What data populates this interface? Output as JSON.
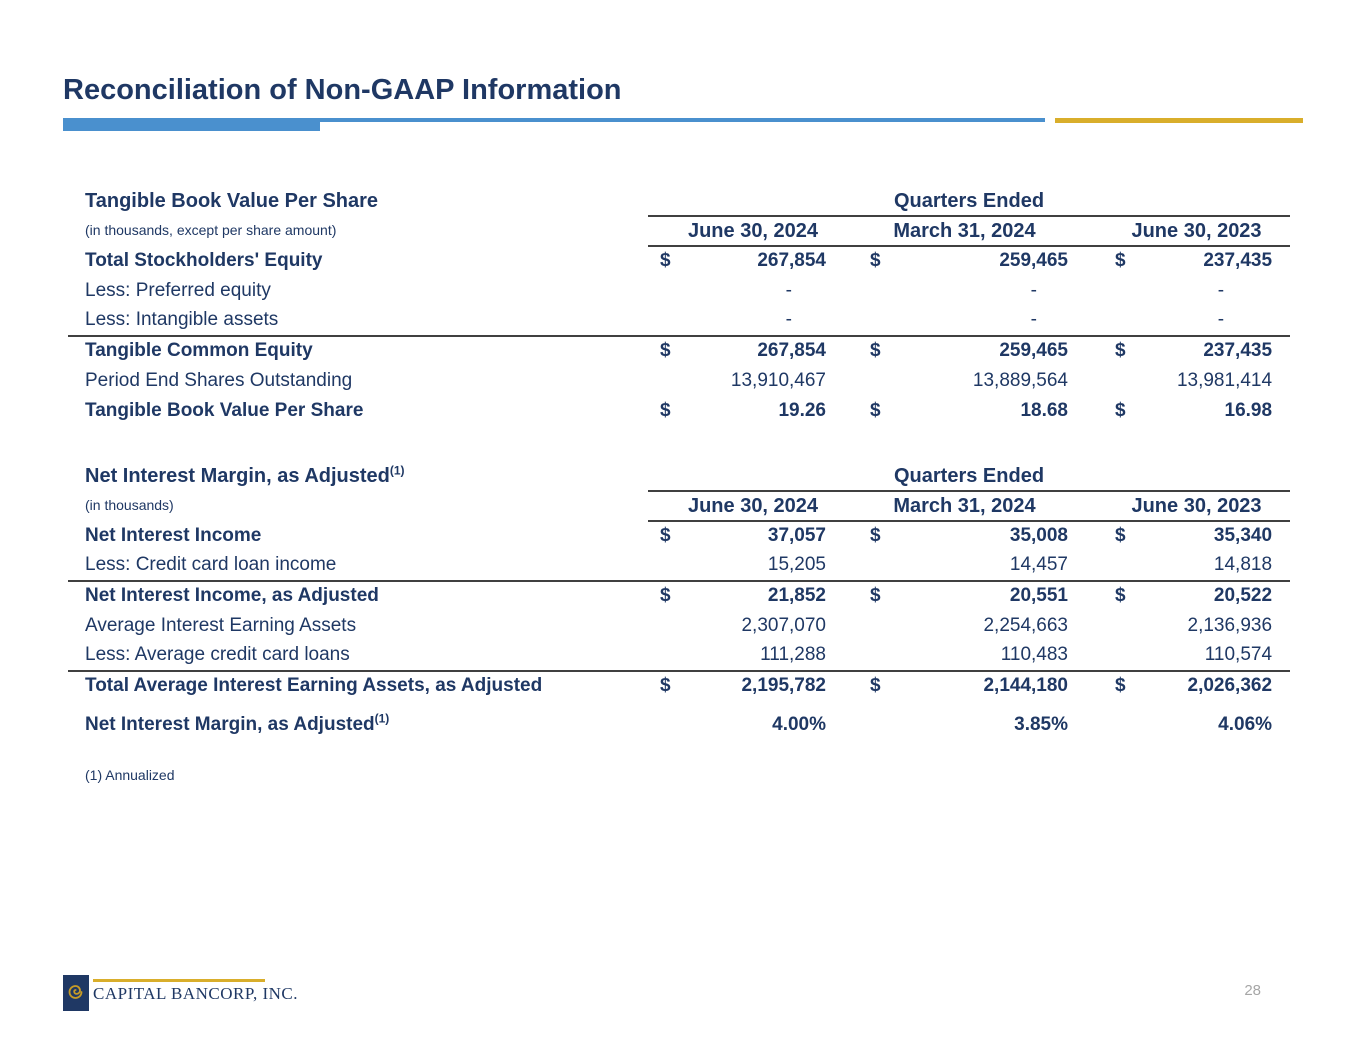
{
  "slide": {
    "title": "Reconciliation of Non-GAAP Information",
    "page_number": "28",
    "footnote": "(1) Annualized"
  },
  "colors": {
    "navy": "#1F3864",
    "accent_blue": "#4A90CE",
    "gold": "#D9AE2B",
    "rule": "#404040",
    "page_gray": "#A6A6A6"
  },
  "footer": {
    "logo_text": "CAPITAL BANCORP, INC."
  },
  "tables": [
    {
      "title": "Tangible Book Value Per Share",
      "subtitle": "(in thousands, except per share amount)",
      "header": "Quarters Ended",
      "currency_symbol": "$",
      "columns": [
        "June 30, 2024",
        "March 31, 2024",
        "June 30, 2023"
      ],
      "rows": [
        {
          "label": "Total Stockholders' Equity",
          "bold": true,
          "dollar": true,
          "values": [
            "267,854",
            "259,465",
            "237,435"
          ]
        },
        {
          "label": "Less: Preferred equity",
          "values": [
            "-",
            "-",
            "-"
          ]
        },
        {
          "label": "Less: Intangible assets",
          "values": [
            "-",
            "-",
            "-"
          ],
          "rule_below": true
        },
        {
          "label": "Tangible Common Equity",
          "bold": true,
          "dollar": true,
          "values": [
            "267,854",
            "259,465",
            "237,435"
          ]
        },
        {
          "label": "Period End Shares Outstanding",
          "values": [
            "13,910,467",
            "13,889,564",
            "13,981,414"
          ]
        },
        {
          "label": "Tangible Book Value Per Share",
          "bold": true,
          "dollar": true,
          "values": [
            "19.26",
            "18.68",
            "16.98"
          ]
        }
      ]
    },
    {
      "title": "Net Interest Margin, as Adjusted",
      "title_sup": "(1)",
      "subtitle": "(in thousands)",
      "header": "Quarters Ended",
      "currency_symbol": "$",
      "columns": [
        "June 30, 2024",
        "March 31, 2024",
        "June 30, 2023"
      ],
      "rows": [
        {
          "label": "Net Interest Income",
          "bold": true,
          "dollar": true,
          "values": [
            "37,057",
            "35,008",
            "35,340"
          ]
        },
        {
          "label": "Less: Credit card loan income",
          "values": [
            "15,205",
            "14,457",
            "14,818"
          ],
          "rule_below": true
        },
        {
          "label": "Net Interest Income, as Adjusted",
          "bold": true,
          "dollar": true,
          "values": [
            "21,852",
            "20,551",
            "20,522"
          ]
        },
        {
          "label": "Average Interest Earning Assets",
          "values": [
            "2,307,070",
            "2,254,663",
            "2,136,936"
          ]
        },
        {
          "label": "Less: Average credit card loans",
          "values": [
            "111,288",
            "110,483",
            "110,574"
          ],
          "rule_below": true
        },
        {
          "label": "Total Average Interest Earning Assets, as Adjusted",
          "bold": true,
          "dollar": true,
          "values": [
            "2,195,782",
            "2,144,180",
            "2,026,362"
          ]
        },
        {
          "label": "Net Interest Margin, as Adjusted",
          "label_sup": "(1)",
          "bold": true,
          "values": [
            "4.00%",
            "3.85%",
            "4.06%"
          ],
          "spacer_above": true
        }
      ]
    }
  ]
}
